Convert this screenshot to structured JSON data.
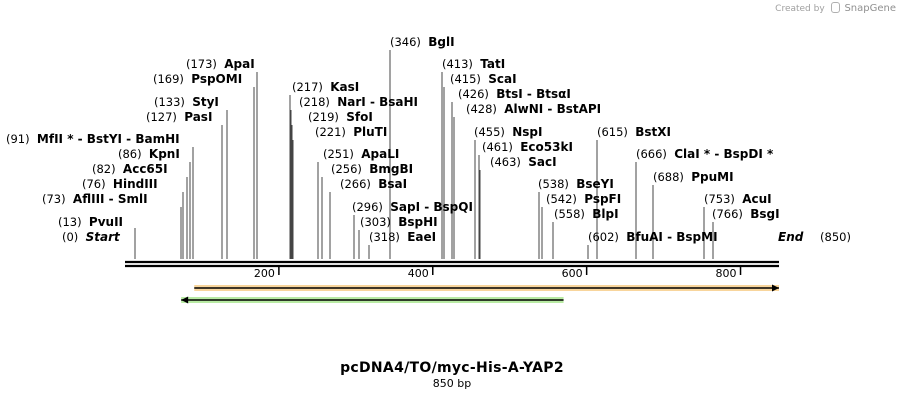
{
  "credit": {
    "prefix": "Created by",
    "brand": "SnapGene",
    "icon": "snapgene-logo-icon"
  },
  "map": {
    "title": "pcDNA4/TO/myc-His-A-YAP2",
    "length_label": "850 bp",
    "total_bp": 850,
    "ruler_ticks": [
      "200",
      "400",
      "600",
      "800"
    ],
    "start_label": {
      "pos": "(0)",
      "name": "Start"
    },
    "end_label": {
      "name": "End",
      "pos": "(850)"
    }
  },
  "sites": [
    {
      "pos": "(91)",
      "names": [
        "MfII",
        "*",
        "BstYI",
        "BamHI"
      ]
    },
    {
      "pos": "(86)",
      "names": [
        "KpnI"
      ]
    },
    {
      "pos": "(82)",
      "names": [
        "Acc65I"
      ]
    },
    {
      "pos": "(76)",
      "names": [
        "HindIII"
      ]
    },
    {
      "pos": "(73)",
      "names": [
        "AflIII",
        "SmlI"
      ]
    },
    {
      "pos": "(13)",
      "names": [
        "PvuII"
      ]
    },
    {
      "pos": "(173)",
      "names": [
        "ApaI"
      ]
    },
    {
      "pos": "(169)",
      "names": [
        "PspOMI"
      ]
    },
    {
      "pos": "(133)",
      "names": [
        "StyI"
      ]
    },
    {
      "pos": "(127)",
      "names": [
        "PasI"
      ]
    },
    {
      "pos": "(217)",
      "names": [
        "KasI"
      ]
    },
    {
      "pos": "(218)",
      "names": [
        "NarI",
        "BsaHI"
      ]
    },
    {
      "pos": "(219)",
      "names": [
        "SfoI"
      ]
    },
    {
      "pos": "(221)",
      "names": [
        "PluTI"
      ]
    },
    {
      "pos": "(251)",
      "names": [
        "ApaLI"
      ]
    },
    {
      "pos": "(256)",
      "names": [
        "BmgBI"
      ]
    },
    {
      "pos": "(266)",
      "names": [
        "BsaI"
      ]
    },
    {
      "pos": "(296)",
      "names": [
        "SapI",
        "BspQI"
      ]
    },
    {
      "pos": "(303)",
      "names": [
        "BspHI"
      ]
    },
    {
      "pos": "(318)",
      "names": [
        "EaeI"
      ]
    },
    {
      "pos": "(346)",
      "names": [
        "BglI"
      ]
    },
    {
      "pos": "(413)",
      "names": [
        "TatI"
      ]
    },
    {
      "pos": "(415)",
      "names": [
        "ScaI"
      ]
    },
    {
      "pos": "(426)",
      "names": [
        "BtsI",
        "BtsαI"
      ]
    },
    {
      "pos": "(428)",
      "names": [
        "AlwNI",
        "BstAPI"
      ]
    },
    {
      "pos": "(455)",
      "names": [
        "NspI"
      ]
    },
    {
      "pos": "(461)",
      "names": [
        "Eco53kI"
      ]
    },
    {
      "pos": "(463)",
      "names": [
        "SacI"
      ]
    },
    {
      "pos": "(538)",
      "names": [
        "BseYI"
      ]
    },
    {
      "pos": "(542)",
      "names": [
        "PspFI"
      ]
    },
    {
      "pos": "(558)",
      "names": [
        "BlpI"
      ]
    },
    {
      "pos": "(602)",
      "names": [
        "BfuAI",
        "BspMI"
      ]
    },
    {
      "pos": "(615)",
      "names": [
        "BstXI"
      ]
    },
    {
      "pos": "(666)",
      "names": [
        "ClaI",
        "*",
        "BspDI",
        "*"
      ]
    },
    {
      "pos": "(688)",
      "names": [
        "PpuMI"
      ]
    },
    {
      "pos": "(753)",
      "names": [
        "AcuI"
      ]
    },
    {
      "pos": "(766)",
      "names": [
        "BsgI"
      ]
    }
  ],
  "features": [
    {
      "name": "forward-feature-arrow",
      "direction": "forward",
      "color": "#f2b24a",
      "start_bp": 90,
      "end_bp": 850
    },
    {
      "name": "reverse-feature-arrow",
      "direction": "reverse",
      "color": "#7ed957",
      "start_bp": 73,
      "end_bp": 570
    }
  ]
}
